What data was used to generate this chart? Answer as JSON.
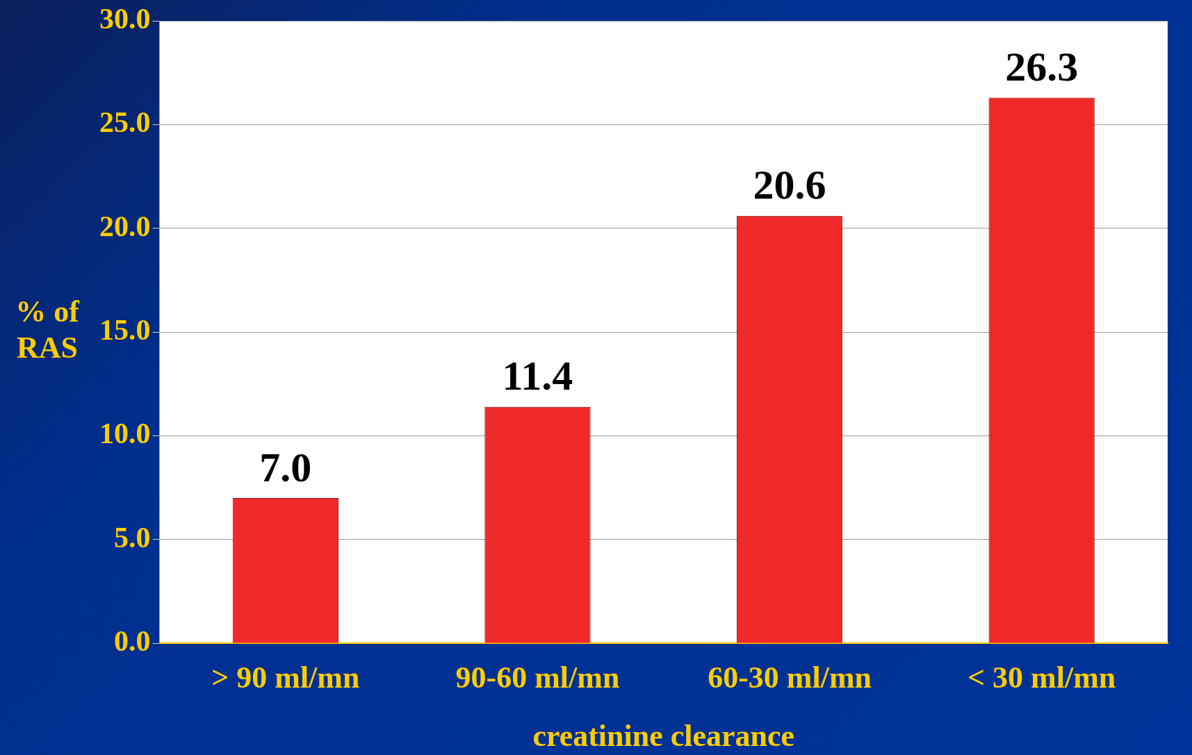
{
  "chart_data": {
    "type": "bar",
    "xlabel": "creatinine clearance",
    "ylabel": "% of\nRAS",
    "categories": [
      "> 90 ml/mn",
      "90-60 ml/mn",
      "60-30 ml/mn",
      "< 30 ml/mn"
    ],
    "values": [
      7.0,
      11.4,
      20.6,
      26.3
    ],
    "color": "#f02a2a",
    "ylim": [
      0,
      30
    ],
    "yticks": [
      {
        "value": 0,
        "label": "0.0"
      },
      {
        "value": 5,
        "label": "5.0"
      },
      {
        "value": 10,
        "label": "10.0"
      },
      {
        "value": 15,
        "label": "15.0"
      },
      {
        "value": 20,
        "label": "20.0"
      },
      {
        "value": 25,
        "label": "25.0"
      },
      {
        "value": 30,
        "label": "30.0"
      }
    ],
    "value_labels": [
      "7.0",
      "11.4",
      "20.6",
      "26.3"
    ],
    "grid": "y",
    "legend": false
  }
}
